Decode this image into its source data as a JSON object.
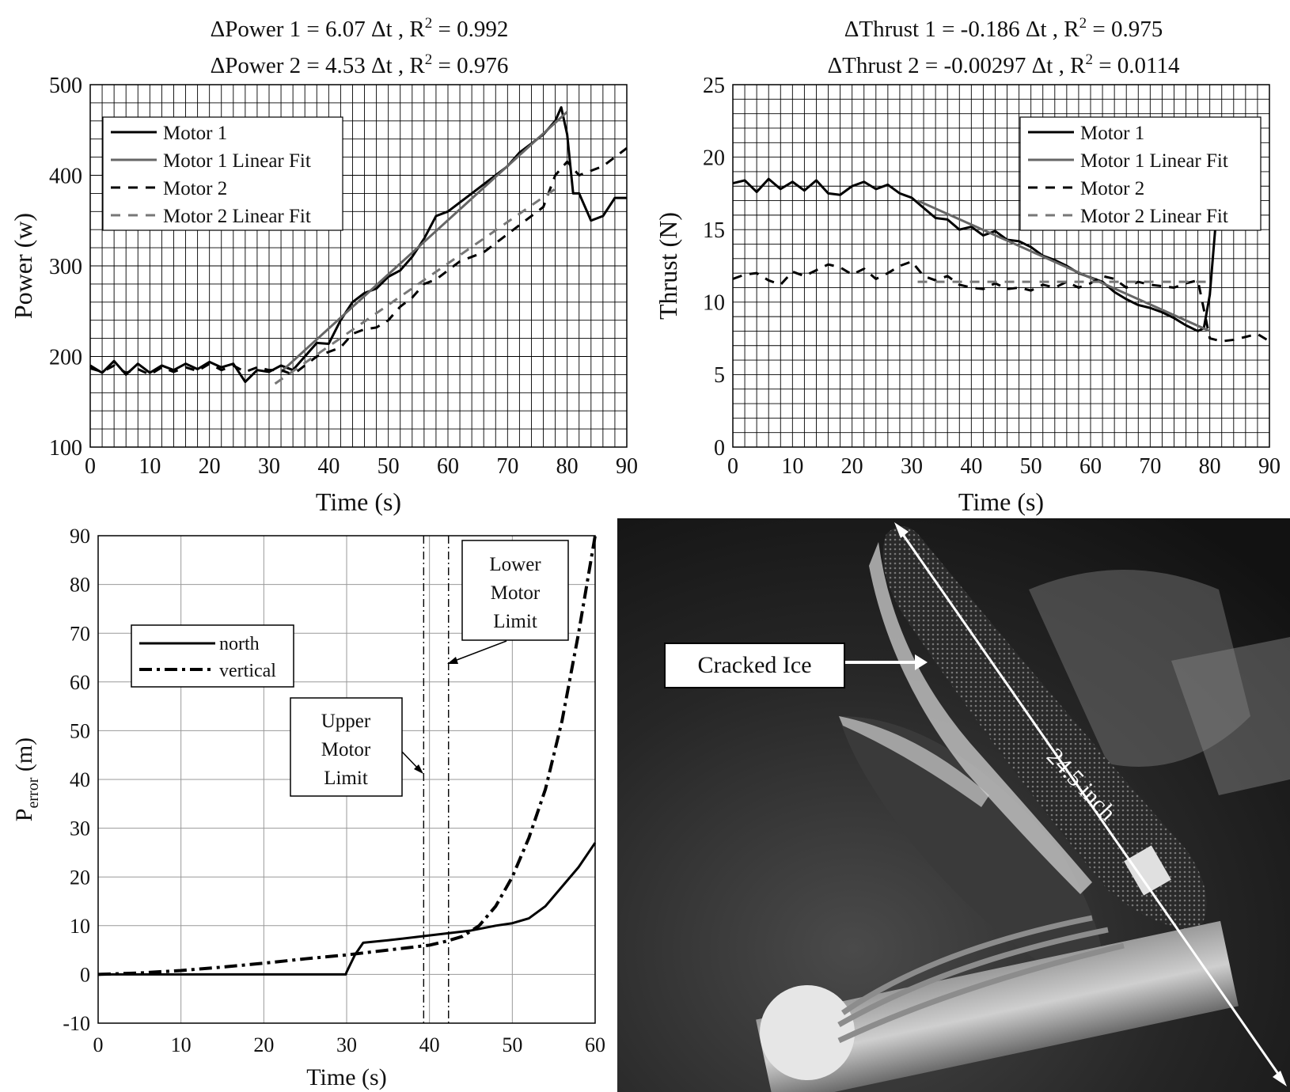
{
  "chart_data": [
    {
      "id": "power",
      "type": "line",
      "title_lines": [
        {
          "prefix": "ΔPower 1 = 6.07 Δt , R",
          "sup": "2",
          "suffix": " = 0.992"
        },
        {
          "prefix": "ΔPower 2 = 4.53 Δt , R",
          "sup": "2",
          "suffix": " = 0.976"
        }
      ],
      "xlabel": "Time (s)",
      "ylabel": "Power (w)",
      "xlim": [
        0,
        90
      ],
      "ylim": [
        100,
        500
      ],
      "xticks": [
        0,
        10,
        20,
        30,
        40,
        50,
        60,
        70,
        80,
        90
      ],
      "yticks": [
        100,
        200,
        300,
        400,
        500
      ],
      "grid": "fine",
      "legend_position": "top-left",
      "series": [
        {
          "name": "Motor 1",
          "style": "solid",
          "color": "#000000",
          "x": [
            0,
            2,
            4,
            6,
            8,
            10,
            12,
            14,
            16,
            18,
            20,
            22,
            24,
            26,
            28,
            30,
            32,
            34,
            36,
            38,
            40,
            42,
            44,
            46,
            48,
            50,
            52,
            54,
            56,
            58,
            60,
            62,
            64,
            66,
            68,
            70,
            72,
            74,
            76,
            78,
            79,
            80,
            81,
            82,
            84,
            86,
            88,
            90
          ],
          "y": [
            190,
            182,
            195,
            180,
            192,
            182,
            190,
            185,
            192,
            186,
            194,
            188,
            192,
            172,
            185,
            183,
            190,
            185,
            200,
            215,
            214,
            240,
            260,
            270,
            275,
            288,
            295,
            310,
            330,
            355,
            360,
            370,
            380,
            390,
            400,
            410,
            425,
            435,
            445,
            460,
            475,
            445,
            380,
            380,
            350,
            355,
            375,
            375
          ]
        },
        {
          "name": "Motor 1 Linear Fit",
          "style": "solid",
          "color": "#666666",
          "x": [
            32,
            80
          ],
          "y": [
            183,
            470
          ]
        },
        {
          "name": "Motor 2",
          "style": "dashed",
          "color": "#000000",
          "x": [
            0,
            2,
            4,
            6,
            8,
            10,
            12,
            14,
            16,
            18,
            20,
            22,
            24,
            26,
            28,
            30,
            32,
            34,
            36,
            38,
            40,
            42,
            44,
            46,
            48,
            50,
            52,
            54,
            56,
            58,
            60,
            62,
            64,
            66,
            68,
            70,
            72,
            74,
            76,
            78,
            80,
            82,
            84,
            86,
            88,
            90
          ],
          "y": [
            187,
            183,
            190,
            182,
            186,
            180,
            188,
            183,
            188,
            184,
            192,
            185,
            190,
            183,
            188,
            185,
            185,
            180,
            190,
            200,
            205,
            210,
            225,
            230,
            232,
            240,
            255,
            265,
            280,
            285,
            295,
            305,
            310,
            315,
            325,
            335,
            345,
            355,
            365,
            400,
            415,
            400,
            405,
            410,
            420,
            430
          ]
        },
        {
          "name": "Motor 2 Linear Fit",
          "style": "dashed",
          "color": "#777777",
          "x": [
            31,
            78
          ],
          "y": [
            170,
            385
          ]
        }
      ]
    },
    {
      "id": "thrust",
      "type": "line",
      "title_lines": [
        {
          "prefix": "ΔThrust 1 = -0.186 Δt , R",
          "sup": "2",
          "suffix": " = 0.975"
        },
        {
          "prefix": "ΔThrust 2 = -0.00297 Δt , R",
          "sup": "2",
          "suffix": " = 0.0114"
        }
      ],
      "xlabel": "Time (s)",
      "ylabel": "Thrust (N)",
      "xlim": [
        0,
        90
      ],
      "ylim": [
        0,
        25
      ],
      "xticks": [
        0,
        10,
        20,
        30,
        40,
        50,
        60,
        70,
        80,
        90
      ],
      "yticks": [
        0,
        5,
        10,
        15,
        20,
        25
      ],
      "grid": "fine",
      "legend_position": "top-right",
      "series": [
        {
          "name": "Motor 1",
          "style": "solid",
          "color": "#000000",
          "x": [
            0,
            2,
            4,
            6,
            8,
            10,
            12,
            14,
            16,
            18,
            20,
            22,
            24,
            26,
            28,
            30,
            32,
            34,
            36,
            38,
            40,
            42,
            44,
            46,
            48,
            50,
            52,
            54,
            56,
            58,
            60,
            62,
            64,
            66,
            68,
            70,
            72,
            74,
            76,
            78,
            79,
            80,
            81
          ],
          "y": [
            18.2,
            18.4,
            17.6,
            18.5,
            17.8,
            18.3,
            17.7,
            18.4,
            17.5,
            17.4,
            18.0,
            18.3,
            17.8,
            18.1,
            17.5,
            17.2,
            16.5,
            15.8,
            15.7,
            15.0,
            15.2,
            14.6,
            14.9,
            14.3,
            14.2,
            13.8,
            13.2,
            12.9,
            12.5,
            12.0,
            11.7,
            11.4,
            10.7,
            10.2,
            9.8,
            9.6,
            9.3,
            8.9,
            8.4,
            8.0,
            8.2,
            10.5,
            15.5
          ]
        },
        {
          "name": "Motor 1 Linear Fit",
          "style": "solid",
          "color": "#666666",
          "x": [
            31,
            80
          ],
          "y": [
            17.0,
            8.0
          ]
        },
        {
          "name": "Motor 2",
          "style": "dashed",
          "color": "#000000",
          "x": [
            0,
            2,
            4,
            6,
            8,
            10,
            12,
            14,
            16,
            18,
            20,
            22,
            24,
            26,
            28,
            30,
            32,
            34,
            36,
            38,
            40,
            42,
            44,
            46,
            48,
            50,
            52,
            54,
            56,
            58,
            60,
            62,
            64,
            66,
            68,
            70,
            72,
            74,
            76,
            78,
            80,
            82,
            84,
            86,
            88,
            90
          ],
          "y": [
            11.6,
            11.9,
            12.0,
            11.5,
            11.2,
            12.1,
            11.8,
            12.2,
            12.6,
            12.4,
            11.9,
            12.3,
            11.6,
            12.0,
            12.5,
            12.8,
            11.8,
            11.5,
            11.8,
            11.2,
            11.0,
            10.9,
            11.3,
            10.9,
            11.0,
            10.8,
            11.2,
            11.0,
            11.4,
            11.0,
            11.3,
            11.8,
            11.6,
            11.0,
            11.4,
            11.2,
            11.1,
            11.0,
            11.3,
            11.5,
            7.5,
            7.3,
            7.4,
            7.6,
            7.8,
            7.3
          ]
        },
        {
          "name": "Motor 2 Linear Fit",
          "style": "dashed",
          "color": "#777777",
          "x": [
            31,
            80
          ],
          "y": [
            11.4,
            11.4
          ]
        }
      ]
    },
    {
      "id": "perror",
      "type": "line",
      "xlabel": "Time (s)",
      "ylabel_main": "P",
      "ylabel_sub": "error",
      "ylabel_unit": " (m)",
      "xlim": [
        0,
        60
      ],
      "ylim": [
        -10,
        90
      ],
      "xticks": [
        0,
        10,
        20,
        30,
        40,
        50,
        60
      ],
      "yticks": [
        -10,
        0,
        10,
        20,
        30,
        40,
        50,
        60,
        70,
        80,
        90
      ],
      "xtick_labels": [
        "0",
        "10",
        "20",
        "30",
        "40",
        "50",
        "60"
      ],
      "ytick_labels": [
        "-10",
        "0",
        "10",
        "20",
        "30",
        "40",
        "50",
        "60",
        "70",
        "80",
        "90"
      ],
      "grid": "coarse",
      "legend_position": "upper-left",
      "series": [
        {
          "name": "north",
          "style": "solid",
          "color": "#000000",
          "x": [
            0,
            10,
            20,
            29.9,
            30,
            31,
            32,
            35,
            40,
            45,
            48,
            50,
            52,
            54,
            56,
            58,
            60
          ],
          "y": [
            0,
            0,
            0,
            0,
            0.5,
            4,
            6.5,
            7,
            8,
            9,
            10,
            10.5,
            11.5,
            14,
            18,
            22,
            27
          ]
        },
        {
          "name": "vertical",
          "style": "dashdot",
          "color": "#000000",
          "x": [
            0,
            5,
            10,
            15,
            20,
            25,
            30,
            35,
            40,
            42,
            44,
            46,
            48,
            50,
            52,
            54,
            56,
            58,
            59,
            60
          ],
          "y": [
            0,
            0.3,
            0.8,
            1.5,
            2.3,
            3.2,
            4,
            5,
            6,
            6.8,
            7.8,
            10,
            14,
            20,
            28,
            38,
            52,
            70,
            80,
            90
          ]
        }
      ],
      "vlines": [
        {
          "x": 39.3,
          "label_lines": [
            "Upper",
            "Motor",
            "Limit"
          ]
        },
        {
          "x": 42.3,
          "label_lines": [
            "Lower",
            "Motor",
            "Limit"
          ]
        }
      ]
    }
  ],
  "photo": {
    "callout": "Cracked Ice",
    "dimension": "24.5 inch"
  }
}
